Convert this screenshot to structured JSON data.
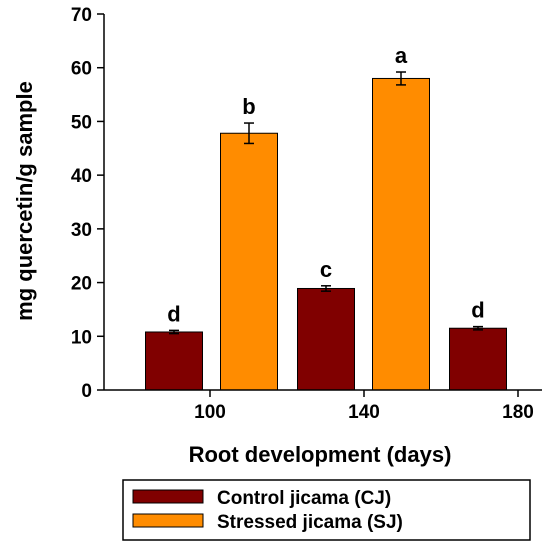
{
  "chart_data": {
    "type": "bar",
    "xlabel": "Root development  (days)",
    "ylabel": "mg quercetin/g sample",
    "ylim": [
      0,
      70
    ],
    "y_ticks": [
      "0",
      "10",
      "20",
      "30",
      "40",
      "50",
      "60",
      "70"
    ],
    "x_ticks": [
      "100",
      "140",
      "180"
    ],
    "grid": false,
    "legend_position": "bottom",
    "bars": [
      {
        "series": "Control jicama (CJ)",
        "x": 100,
        "value": 10.8,
        "error": 0.3,
        "letter": "d",
        "color": "#800000"
      },
      {
        "series": "Stressed jicama (SJ)",
        "x": 100,
        "value": 47.8,
        "error": 1.9,
        "letter": "b",
        "color": "#ff8c00"
      },
      {
        "series": "Control jicama (CJ)",
        "x": 140,
        "value": 18.9,
        "error": 0.5,
        "letter": "c",
        "color": "#800000"
      },
      {
        "series": "Stressed jicama (SJ)",
        "x": 140,
        "value": 58.0,
        "error": 1.2,
        "letter": "a",
        "color": "#ff8c00"
      },
      {
        "series": "Control jicama (CJ)",
        "x": 180,
        "value": 11.5,
        "error": 0.3,
        "letter": "d",
        "color": "#800000"
      }
    ],
    "legend": [
      {
        "label": "Control jicama (CJ)",
        "color": "#800000"
      },
      {
        "label": "Stressed jicama (SJ)",
        "color": "#ff8c00"
      }
    ]
  }
}
